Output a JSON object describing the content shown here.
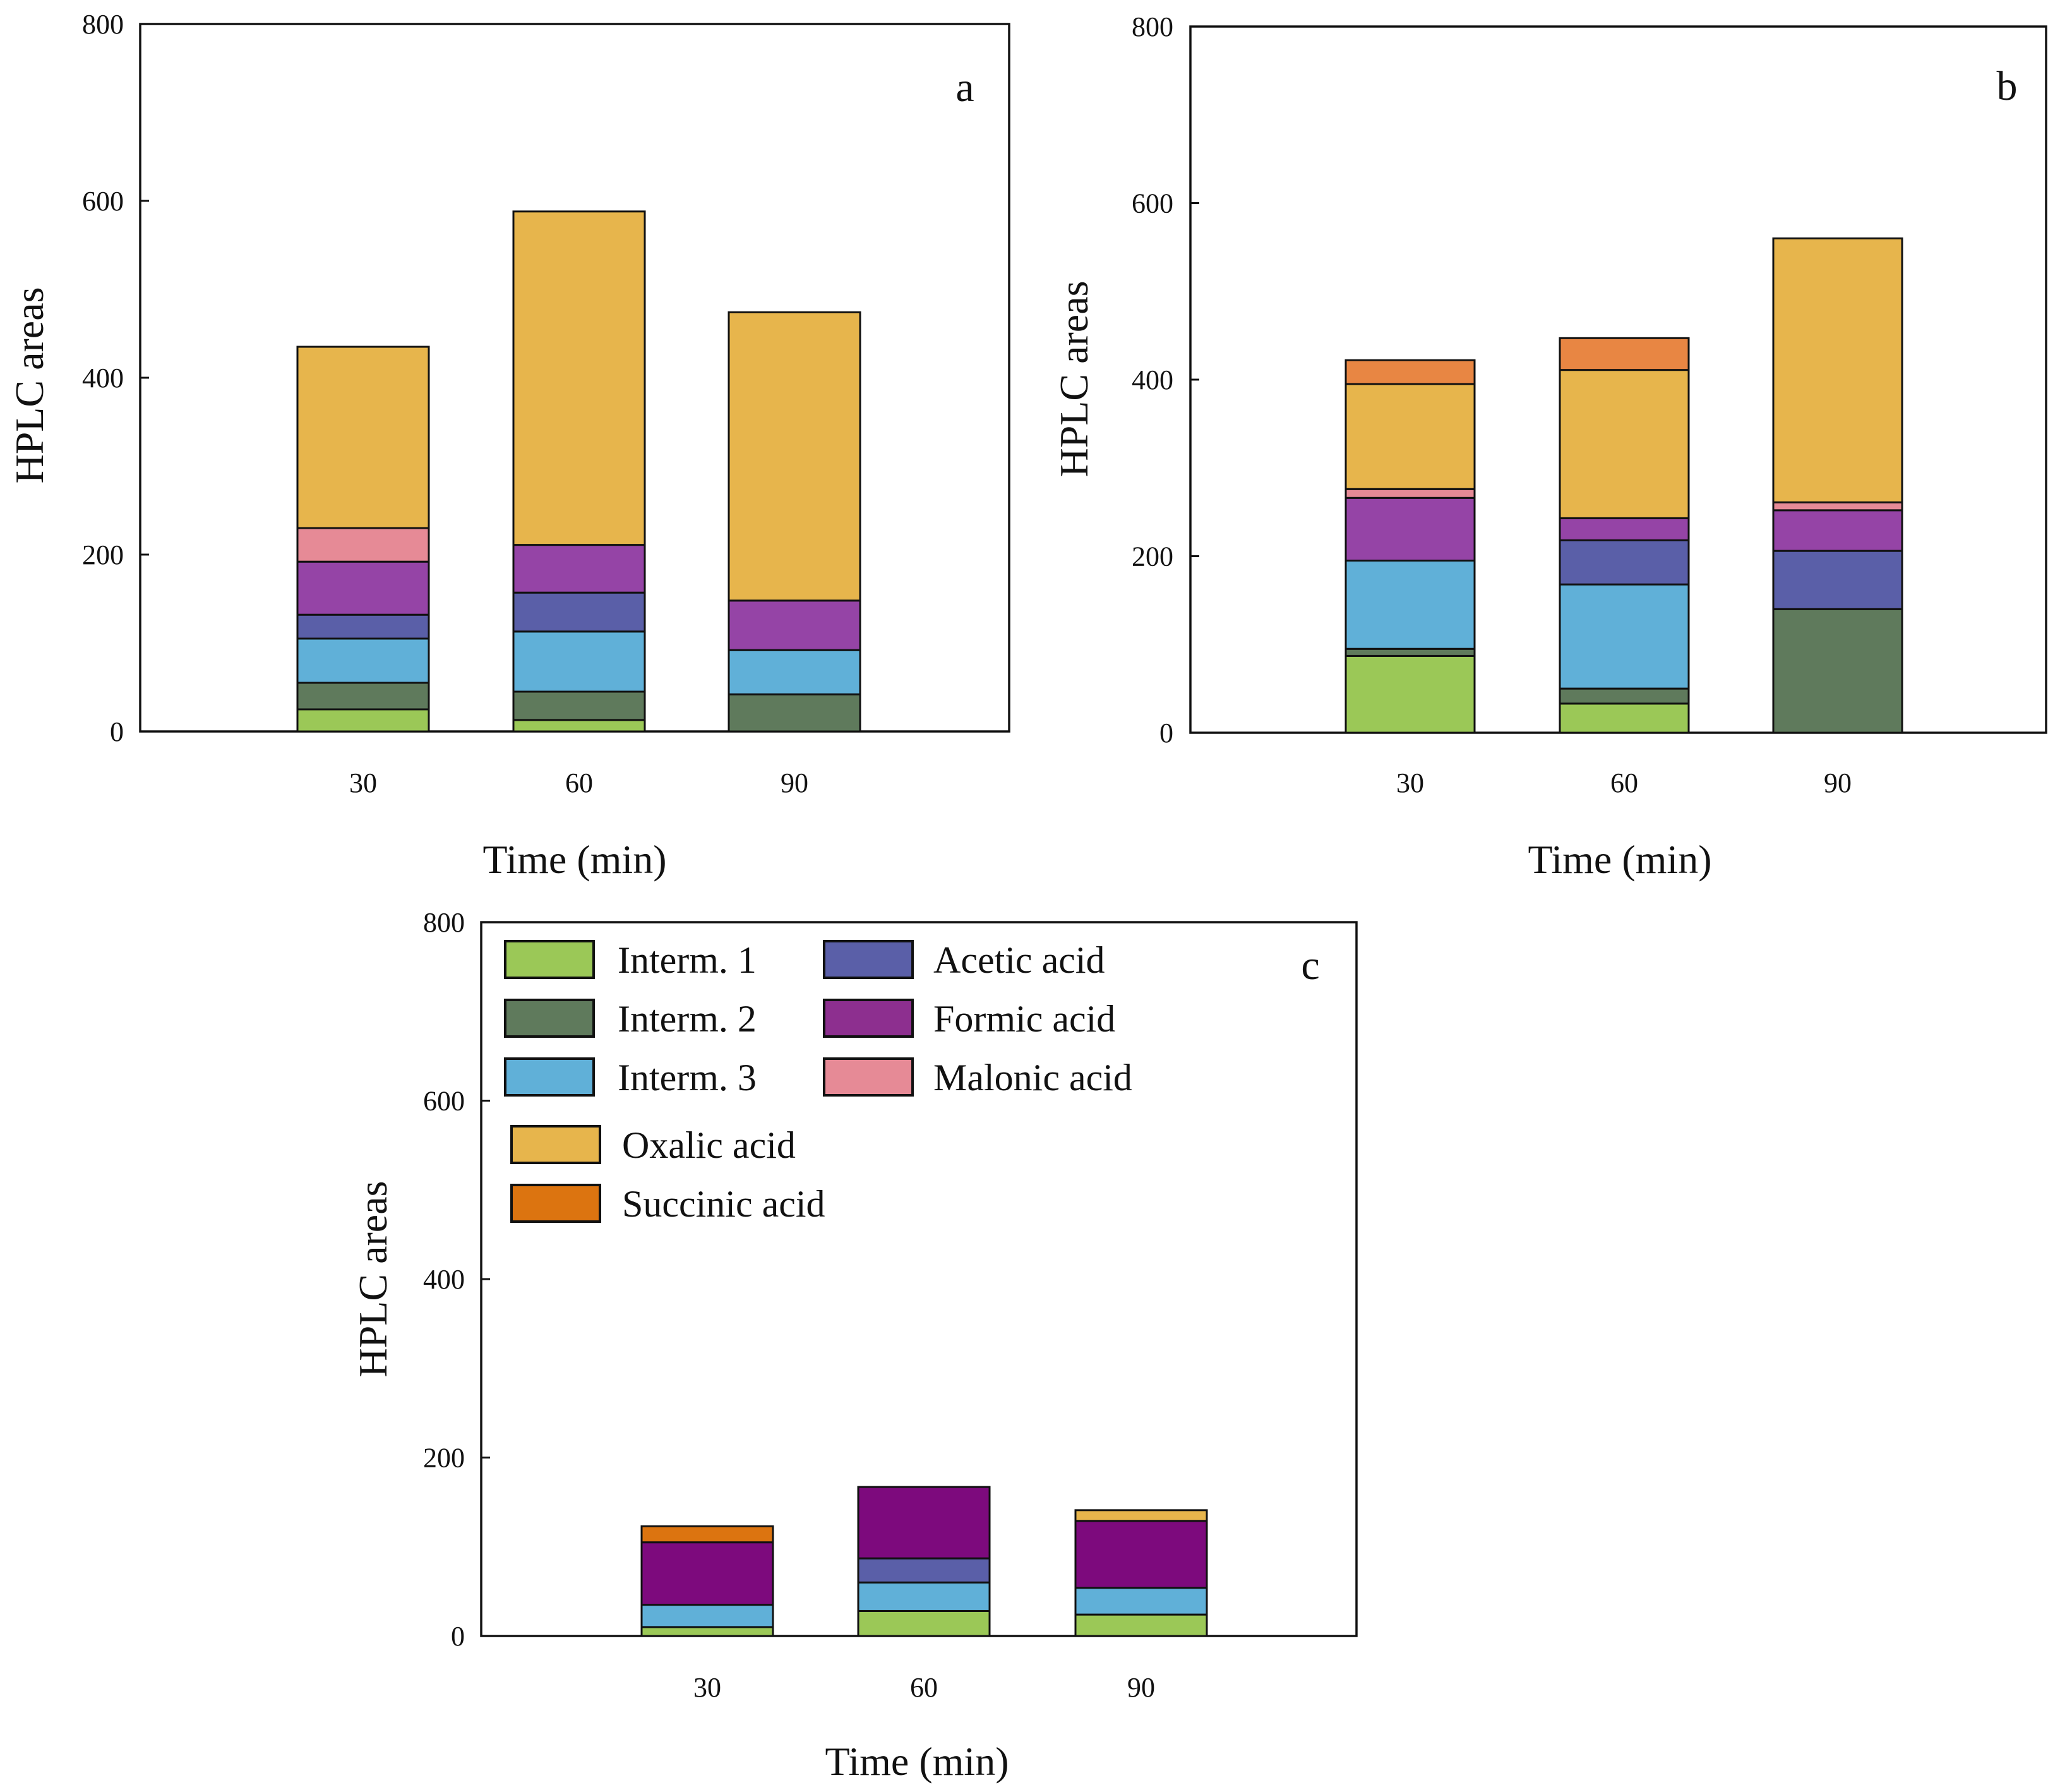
{
  "colors": {
    "Interm. 1": "#9bc857",
    "Interm. 2": "#5f7a5c",
    "Interm. 3": "#60b0d8",
    "Acetic acid": "#5a5fa8",
    "Formic acid": "#9544a6",
    "Malonic acid": "#e68a96",
    "Oxalic acid": "#e7b54c",
    "Succinic acid": "#e88643"
  },
  "panel_colors_override": {
    "c": {
      "Formic acid": "#7d0a7d",
      "Succinic acid": "#dc7410"
    }
  },
  "legend": {
    "items": [
      {
        "label": "Interm. 1",
        "color": "#9bc857"
      },
      {
        "label": "Interm. 2",
        "color": "#5f7a5c"
      },
      {
        "label": "Interm. 3",
        "color": "#60b0d8"
      },
      {
        "label": "Acetic acid",
        "color": "#5a5fa8"
      },
      {
        "label": "Formic acid",
        "color": "#8d2f8f"
      },
      {
        "label": "Malonic acid",
        "color": "#e68a96"
      },
      {
        "label": "Oxalic acid",
        "color": "#e7b54c"
      },
      {
        "label": "Succinic acid",
        "color": "#dc7410"
      }
    ]
  },
  "chart_data": [
    {
      "type": "bar",
      "stacked": true,
      "panel": "a",
      "xlabel": "Time (min)",
      "ylabel": "HPLC areas",
      "ylim": [
        0,
        800
      ],
      "yticks": [
        0,
        200,
        400,
        600,
        800
      ],
      "categories": [
        "30",
        "60",
        "90"
      ],
      "series": [
        {
          "name": "Interm. 1",
          "values": [
            25,
            13,
            0
          ]
        },
        {
          "name": "Interm. 2",
          "values": [
            30,
            32,
            42
          ]
        },
        {
          "name": "Interm. 3",
          "values": [
            50,
            68,
            50
          ]
        },
        {
          "name": "Acetic acid",
          "values": [
            27,
            44,
            0
          ]
        },
        {
          "name": "Formic acid",
          "values": [
            60,
            54,
            56
          ]
        },
        {
          "name": "Malonic acid",
          "values": [
            38,
            0,
            0
          ]
        },
        {
          "name": "Oxalic acid",
          "values": [
            205,
            377,
            326
          ]
        },
        {
          "name": "Succinic acid",
          "values": [
            0,
            0,
            0
          ]
        }
      ]
    },
    {
      "type": "bar",
      "stacked": true,
      "panel": "b",
      "xlabel": "Time (min)",
      "ylabel": "HPLC areas",
      "ylim": [
        0,
        800
      ],
      "yticks": [
        0,
        200,
        400,
        600,
        800
      ],
      "categories": [
        "30",
        "60",
        "90"
      ],
      "series": [
        {
          "name": "Interm. 1",
          "values": [
            87,
            33,
            0
          ]
        },
        {
          "name": "Interm. 2",
          "values": [
            8,
            17,
            140
          ]
        },
        {
          "name": "Interm. 3",
          "values": [
            100,
            118,
            0
          ]
        },
        {
          "name": "Acetic acid",
          "values": [
            0,
            50,
            66
          ]
        },
        {
          "name": "Formic acid",
          "values": [
            71,
            25,
            46
          ]
        },
        {
          "name": "Malonic acid",
          "values": [
            10,
            0,
            9
          ]
        },
        {
          "name": "Oxalic acid",
          "values": [
            119,
            168,
            299
          ]
        },
        {
          "name": "Succinic acid",
          "values": [
            27,
            36,
            0
          ]
        }
      ]
    },
    {
      "type": "bar",
      "stacked": true,
      "panel": "c",
      "xlabel": "Time (min)",
      "ylabel": "HPLC areas",
      "ylim": [
        0,
        800
      ],
      "yticks": [
        0,
        200,
        400,
        600,
        800
      ],
      "categories": [
        "30",
        "60",
        "90"
      ],
      "series": [
        {
          "name": "Interm. 1",
          "values": [
            10,
            28,
            24
          ]
        },
        {
          "name": "Interm. 2",
          "values": [
            0,
            0,
            0
          ]
        },
        {
          "name": "Interm. 3",
          "values": [
            25,
            32,
            30
          ]
        },
        {
          "name": "Acetic acid",
          "values": [
            0,
            27,
            0
          ]
        },
        {
          "name": "Formic acid",
          "values": [
            70,
            80,
            75
          ]
        },
        {
          "name": "Malonic acid",
          "values": [
            0,
            0,
            0
          ]
        },
        {
          "name": "Oxalic acid",
          "values": [
            0,
            0,
            12
          ]
        },
        {
          "name": "Succinic acid",
          "values": [
            18,
            0,
            0
          ]
        }
      ]
    }
  ]
}
